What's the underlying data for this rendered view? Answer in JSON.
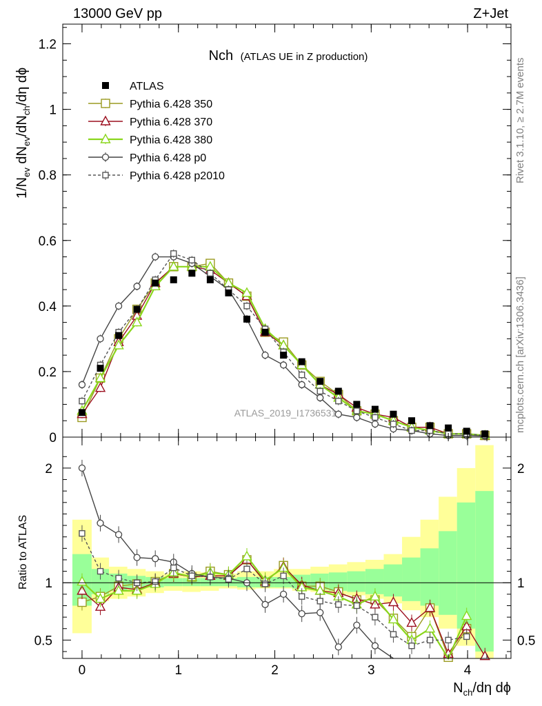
{
  "header": {
    "left": "13000 GeV pp",
    "right": "Z+Jet"
  },
  "side": {
    "rivet": "Rivet 3.1.10, ≥ 2.7M events",
    "mcplots": "mcplots.cern.ch [arXiv:1306.3436]"
  },
  "chart_data": {
    "type": "scatter",
    "title_main": "Nch",
    "title_sub": "(ATLAS UE in Z production)",
    "watermark": "ATLAS_2019_I1736531",
    "xlabel": "N",
    "xlabel_sub": "ch",
    "xlabel_tail": "/dη dϕ",
    "ylabel_main": {
      "p1": "1/N",
      "s1": "ev",
      "p2": " dN",
      "s2": "ev",
      "p3": "/dN",
      "s3": "ch",
      "p4": "/dη dϕ"
    },
    "ylabel_ratio": "Ratio to ATLAS",
    "xlim": [
      -0.2,
      4.45
    ],
    "ylim_main": [
      0,
      1.26
    ],
    "ylim_ratio": [
      0.34,
      2.27
    ],
    "x_ticks": [
      0,
      1,
      2,
      3,
      4
    ],
    "y_ticks_main": [
      0,
      0.2,
      0.4,
      0.6,
      0.8,
      1,
      1.2
    ],
    "y_tick_labels_main": [
      "0",
      "0.2",
      "0.4",
      "0.6",
      "0.8",
      "1",
      "1.2"
    ],
    "y_ticks_ratio": [
      0.5,
      1,
      2
    ],
    "y_tick_labels_ratio": [
      "0.5",
      "1",
      "2"
    ],
    "x": [
      0.0,
      0.19,
      0.38,
      0.57,
      0.76,
      0.95,
      1.14,
      1.33,
      1.52,
      1.71,
      1.9,
      2.09,
      2.28,
      2.47,
      2.66,
      2.85,
      3.04,
      3.23,
      3.42,
      3.61,
      3.8,
      3.99,
      4.18
    ],
    "series": [
      {
        "name": "ATLAS",
        "style": "data",
        "color": "#000000",
        "values": [
          0.075,
          0.21,
          0.31,
          0.39,
          0.47,
          0.48,
          0.5,
          0.48,
          0.44,
          0.36,
          0.32,
          0.25,
          0.23,
          0.17,
          0.14,
          0.1,
          0.085,
          0.07,
          0.05,
          0.035,
          0.028,
          0.018,
          0.01
        ],
        "ratio": [
          1,
          1,
          1,
          1,
          1,
          1,
          1,
          1,
          1,
          1,
          1,
          1,
          1,
          1,
          1,
          1,
          1,
          1,
          1,
          1,
          1,
          1,
          1
        ]
      },
      {
        "name": "Pythia 6.428 350",
        "style": "square",
        "color": "#9a9a20",
        "values": [
          0.06,
          0.18,
          0.3,
          0.39,
          0.47,
          0.52,
          0.52,
          0.53,
          0.47,
          0.43,
          0.32,
          0.29,
          0.22,
          0.17,
          0.13,
          0.08,
          0.07,
          0.05,
          0.03,
          0.03,
          0.01,
          0.01,
          0.005
        ],
        "ratio": [
          0.83,
          0.88,
          0.97,
          0.99,
          1.01,
          1.08,
          1.05,
          1.1,
          1.07,
          1.2,
          1.0,
          1.15,
          0.97,
          0.97,
          0.92,
          0.85,
          0.85,
          0.69,
          0.53,
          0.78,
          0.35,
          0.6,
          null
        ]
      },
      {
        "name": "Pythia 6.428 370",
        "style": "triangle",
        "color": "#9b0f1f",
        "values": [
          0.07,
          0.15,
          0.29,
          0.37,
          0.47,
          0.52,
          0.52,
          0.51,
          0.47,
          0.43,
          0.32,
          0.28,
          0.22,
          0.16,
          0.13,
          0.09,
          0.07,
          0.06,
          0.03,
          0.03,
          0.01,
          0.01,
          0.004
        ],
        "ratio": [
          0.93,
          0.79,
          0.96,
          0.94,
          1.0,
          1.08,
          1.05,
          1.06,
          1.06,
          1.2,
          1.01,
          1.14,
          0.98,
          0.93,
          0.91,
          0.86,
          0.81,
          0.83,
          0.65,
          0.78,
          0.38,
          0.62,
          0.36
        ]
      },
      {
        "name": "Pythia 6.428 380",
        "style": "triangle",
        "color": "#8ad61c",
        "values": [
          0.08,
          0.18,
          0.28,
          0.35,
          0.46,
          0.52,
          0.52,
          0.52,
          0.47,
          0.44,
          0.33,
          0.28,
          0.22,
          0.16,
          0.12,
          0.08,
          0.07,
          0.05,
          0.03,
          0.02,
          0.01,
          0.01,
          0.005
        ],
        "ratio": [
          1.01,
          0.86,
          0.93,
          0.93,
          0.99,
          1.09,
          1.05,
          1.09,
          1.07,
          1.23,
          1.02,
          1.13,
          0.96,
          0.93,
          0.88,
          0.81,
          0.88,
          0.68,
          0.5,
          0.6,
          0.33,
          0.71,
          null
        ]
      },
      {
        "name": "Pythia 6.428 p0",
        "style": "circle",
        "color": "#444444",
        "values": [
          0.16,
          0.3,
          0.4,
          0.46,
          0.55,
          0.55,
          0.53,
          0.49,
          0.45,
          0.36,
          0.25,
          0.22,
          0.16,
          0.12,
          0.07,
          0.06,
          0.04,
          0.025,
          0.02,
          0.01,
          0.005,
          0.005,
          0.003
        ],
        "ratio": [
          2.0,
          1.52,
          1.42,
          1.22,
          1.21,
          1.18,
          1.08,
          1.05,
          1.04,
          1.0,
          0.81,
          0.9,
          0.73,
          0.74,
          0.44,
          0.63,
          0.45,
          0.3,
          null,
          null,
          null,
          null,
          null
        ]
      },
      {
        "name": "Pythia 6.428 p2010",
        "style": "open-square-dashed",
        "color": "#555555",
        "values": [
          0.11,
          0.22,
          0.32,
          0.39,
          0.48,
          0.56,
          0.54,
          0.5,
          0.45,
          0.4,
          0.33,
          0.26,
          0.19,
          0.14,
          0.11,
          0.08,
          0.06,
          0.04,
          0.02,
          0.02,
          0.01,
          0.01,
          0.005
        ],
        "ratio": [
          1.43,
          1.1,
          1.04,
          1.0,
          1.01,
          1.13,
          1.06,
          1.05,
          1.03,
          1.12,
          0.99,
          1.06,
          0.88,
          0.84,
          0.81,
          0.8,
          0.7,
          0.55,
          0.45,
          0.5,
          0.5,
          0.53,
          null
        ]
      }
    ],
    "band_edges": [
      -0.1,
      0.1,
      0.28,
      0.47,
      0.66,
      0.85,
      1.04,
      1.23,
      1.42,
      1.61,
      1.8,
      1.99,
      2.18,
      2.37,
      2.56,
      2.75,
      2.94,
      3.13,
      3.32,
      3.51,
      3.7,
      3.89,
      4.08,
      4.27
    ],
    "band_green": [
      [
        0.8,
        1.25
      ],
      [
        0.9,
        1.12
      ],
      [
        0.93,
        1.08
      ],
      [
        0.95,
        1.06
      ],
      [
        0.96,
        1.05
      ],
      [
        0.97,
        1.04
      ],
      [
        0.97,
        1.04
      ],
      [
        0.97,
        1.04
      ],
      [
        0.97,
        1.04
      ],
      [
        0.96,
        1.05
      ],
      [
        0.96,
        1.05
      ],
      [
        0.96,
        1.05
      ],
      [
        0.95,
        1.07
      ],
      [
        0.94,
        1.08
      ],
      [
        0.93,
        1.09
      ],
      [
        0.92,
        1.1
      ],
      [
        0.9,
        1.12
      ],
      [
        0.88,
        1.16
      ],
      [
        0.84,
        1.22
      ],
      [
        0.8,
        1.3
      ],
      [
        0.72,
        1.45
      ],
      [
        0.6,
        1.7
      ],
      [
        0.4,
        1.8
      ]
    ],
    "band_yellow": [
      [
        0.56,
        1.55
      ],
      [
        0.84,
        1.22
      ],
      [
        0.86,
        1.14
      ],
      [
        0.88,
        1.12
      ],
      [
        0.91,
        1.1
      ],
      [
        0.93,
        1.08
      ],
      [
        0.92,
        1.1
      ],
      [
        0.93,
        1.09
      ],
      [
        0.95,
        1.08
      ],
      [
        0.94,
        1.1
      ],
      [
        0.95,
        1.1
      ],
      [
        0.95,
        1.12
      ],
      [
        0.93,
        1.12
      ],
      [
        0.92,
        1.14
      ],
      [
        0.9,
        1.16
      ],
      [
        0.89,
        1.18
      ],
      [
        0.86,
        1.2
      ],
      [
        0.82,
        1.25
      ],
      [
        0.76,
        1.4
      ],
      [
        0.7,
        1.55
      ],
      [
        0.6,
        1.75
      ],
      [
        0.45,
        2.0
      ],
      [
        0.34,
        2.2
      ]
    ]
  }
}
